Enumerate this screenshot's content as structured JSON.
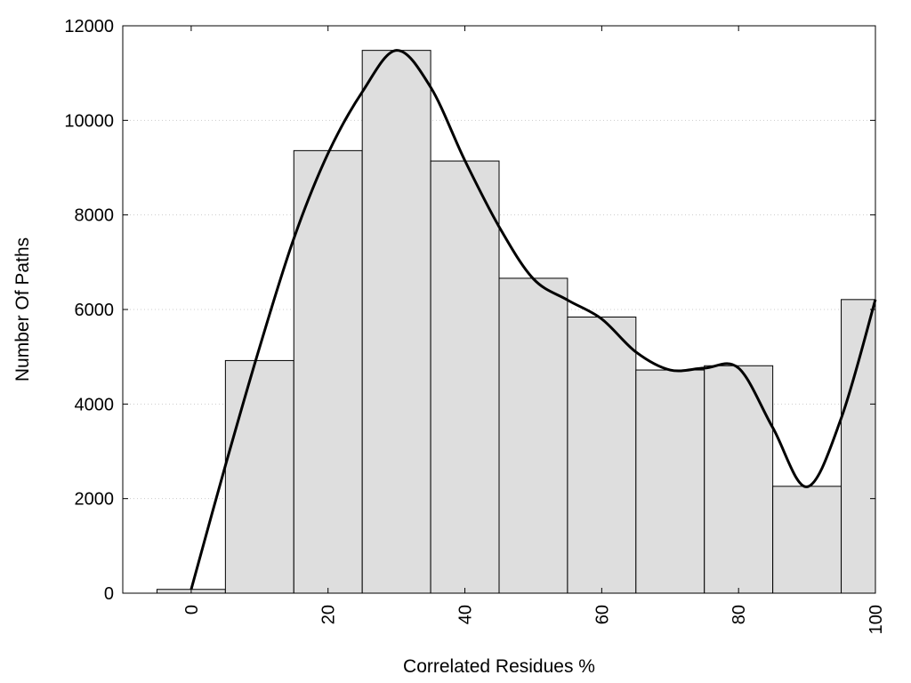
{
  "chart_data": {
    "type": "bar",
    "title": "",
    "xlabel": "Correlated Residues %",
    "ylabel": "Number Of Paths",
    "xlim": [
      -10,
      100
    ],
    "ylim": [
      0,
      12000
    ],
    "x_ticks": [
      0,
      20,
      40,
      60,
      80,
      100
    ],
    "y_ticks": [
      0,
      2000,
      4000,
      6000,
      8000,
      10000,
      12000
    ],
    "grid": "horizontal-dotted",
    "legend": "none",
    "bar_width": 10,
    "bars": [
      {
        "x": 0,
        "value": 80
      },
      {
        "x": 10,
        "value": 4920
      },
      {
        "x": 20,
        "value": 9360
      },
      {
        "x": 30,
        "value": 11480
      },
      {
        "x": 40,
        "value": 9140
      },
      {
        "x": 50,
        "value": 6660
      },
      {
        "x": 60,
        "value": 5840
      },
      {
        "x": 70,
        "value": 4720
      },
      {
        "x": 80,
        "value": 4810
      },
      {
        "x": 90,
        "value": 2260
      },
      {
        "x": 100,
        "value": 6210
      }
    ],
    "curve": {
      "type": "line",
      "smooth": true,
      "points": [
        [
          0,
          80
        ],
        [
          5,
          2700
        ],
        [
          10,
          5200
        ],
        [
          15,
          7500
        ],
        [
          20,
          9300
        ],
        [
          25,
          10600
        ],
        [
          30,
          11480
        ],
        [
          35,
          10700
        ],
        [
          40,
          9150
        ],
        [
          45,
          7750
        ],
        [
          50,
          6650
        ],
        [
          55,
          6200
        ],
        [
          60,
          5800
        ],
        [
          65,
          5100
        ],
        [
          70,
          4720
        ],
        [
          75,
          4760
        ],
        [
          80,
          4760
        ],
        [
          85,
          3500
        ],
        [
          90,
          2250
        ],
        [
          95,
          3700
        ],
        [
          100,
          6210
        ]
      ]
    },
    "colors": {
      "bar_fill": "#dedede",
      "bar_stroke": "#000000",
      "curve": "#000000",
      "grid": "#cccccc"
    }
  }
}
